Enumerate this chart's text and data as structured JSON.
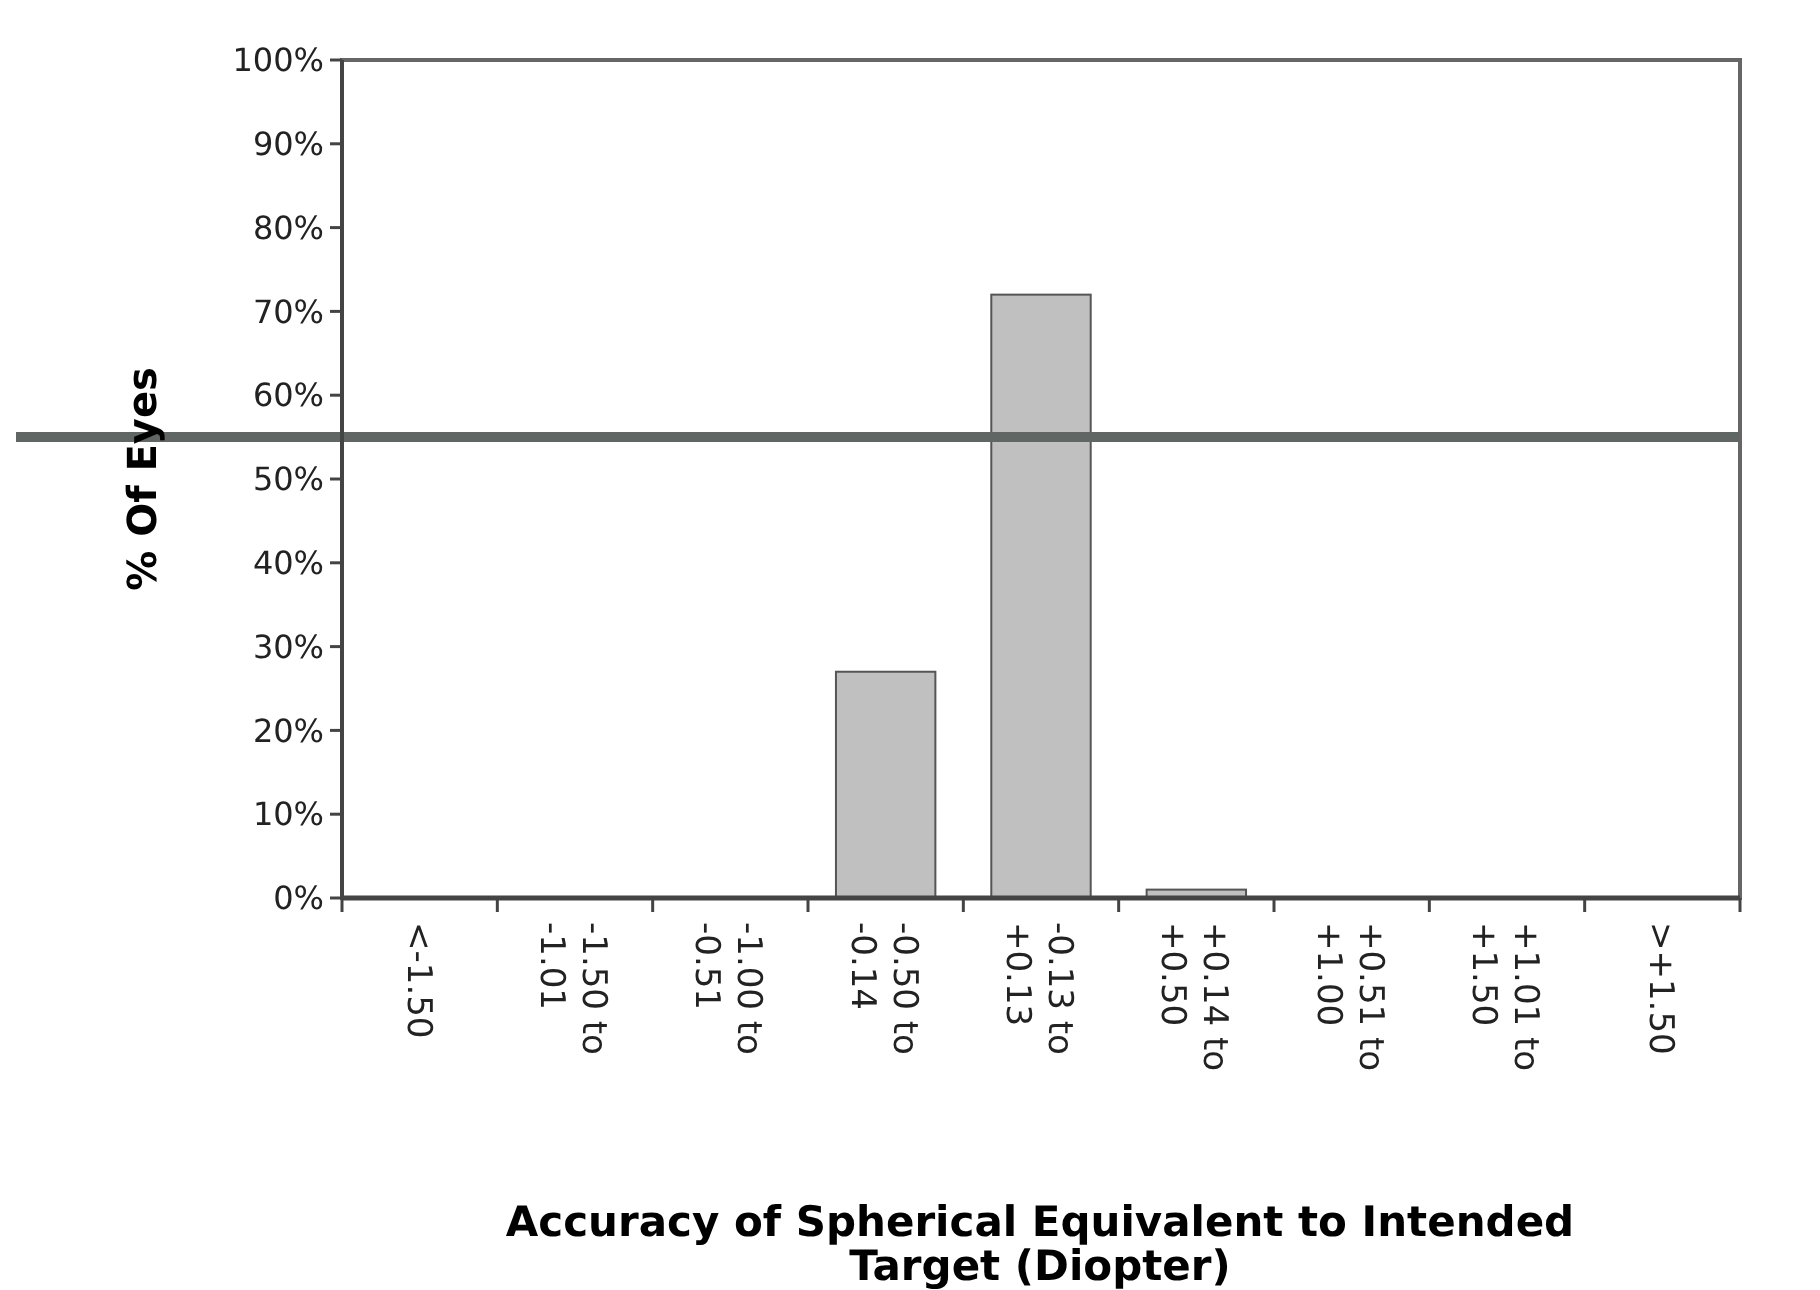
{
  "chart_data": {
    "type": "bar",
    "xlabel": "Accuracy of Spherical Equivalent to Intended Target (Diopter)",
    "ylabel": "% Of Eyes",
    "categories": [
      "<-1.50",
      "-1.50 to -1.01",
      "-1.00 to -0.51",
      "-0.50 to -0.14",
      "-0.13 to +0.13",
      "+0.14 to +0.50",
      "+0.51 to +1.00",
      "+1.01 to +1.50",
      ">+1.50"
    ],
    "values": [
      0,
      0,
      0,
      27,
      72,
      1,
      0,
      0,
      0
    ],
    "color": "#c0c0c0",
    "ylim": [
      0,
      100
    ],
    "yticks": [
      {
        "value": 0,
        "label": "0%"
      },
      {
        "value": 10,
        "label": "10%"
      },
      {
        "value": 20,
        "label": "20%"
      },
      {
        "value": 30,
        "label": "30%"
      },
      {
        "value": 40,
        "label": "40%"
      },
      {
        "value": 50,
        "label": "50%"
      },
      {
        "value": 60,
        "label": "60%"
      },
      {
        "value": 70,
        "label": "70%"
      },
      {
        "value": 80,
        "label": "80%"
      },
      {
        "value": 90,
        "label": "90%"
      },
      {
        "value": 100,
        "label": "100%"
      }
    ],
    "ref_lines": [
      {
        "axis": "y",
        "value": 55,
        "color": "#5f6664"
      }
    ],
    "grid": false
  }
}
